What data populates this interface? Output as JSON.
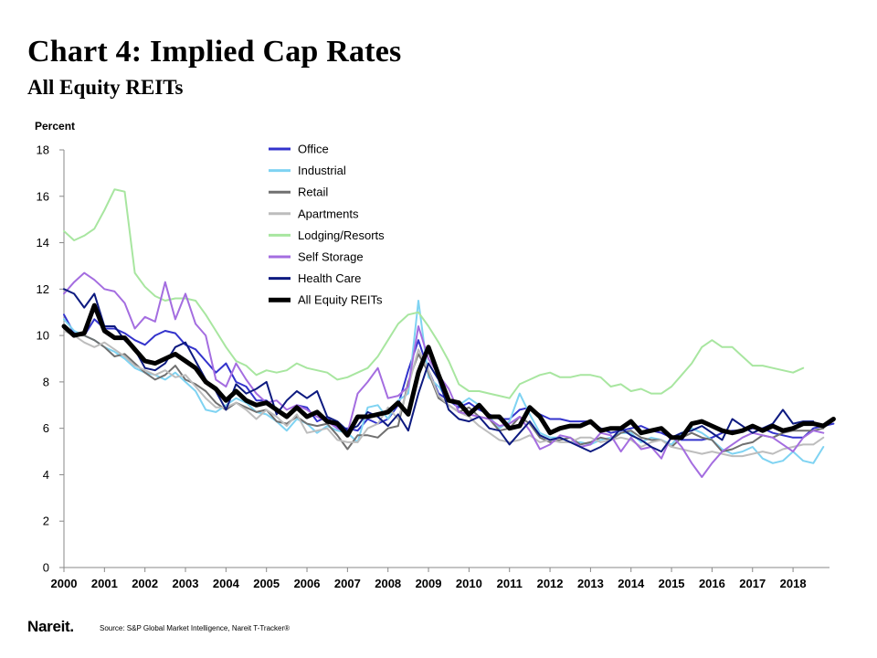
{
  "header": {
    "title": "Chart 4: Implied Cap Rates",
    "subtitle": "All Equity REITs"
  },
  "footer": {
    "logo_text": "Nareit.",
    "source": "Source: S&P Global Market Intelligence, Nareit T-Tracker®"
  },
  "chart_data": {
    "type": "line",
    "title": "Chart 4: Implied Cap Rates",
    "subtitle": "All Equity REITs",
    "ylabel": "Percent",
    "xlabel": "",
    "ylim": [
      0,
      18
    ],
    "yticks": [
      0,
      2,
      4,
      6,
      8,
      10,
      12,
      14,
      16,
      18
    ],
    "xlim": [
      2000,
      2018.9
    ],
    "xticks": [
      2000,
      2001,
      2002,
      2003,
      2004,
      2005,
      2006,
      2007,
      2008,
      2009,
      2010,
      2011,
      2012,
      2013,
      2014,
      2015,
      2016,
      2017,
      2018
    ],
    "x_start": 2000,
    "x_step": 0.25,
    "grid": false,
    "legend_position": "top-center",
    "series": [
      {
        "name": "Office",
        "color": "#3333cc",
        "width": 2,
        "values": [
          10.9,
          10.1,
          10.0,
          10.7,
          10.3,
          10.3,
          10.1,
          9.8,
          9.6,
          10.0,
          10.2,
          10.1,
          9.6,
          9.4,
          8.9,
          8.4,
          8.8,
          8.0,
          7.8,
          7.2,
          7.2,
          6.8,
          6.5,
          7.0,
          6.9,
          6.3,
          6.5,
          6.0,
          6.0,
          5.9,
          6.4,
          6.2,
          6.4,
          7.0,
          8.5,
          9.8,
          8.5,
          7.5,
          7.2,
          6.9,
          7.1,
          6.8,
          6.6,
          6.4,
          6.4,
          6.8,
          6.9,
          6.6,
          6.4,
          6.4,
          6.3,
          6.3,
          6.3,
          6.0,
          5.8,
          5.9,
          6.0,
          6.1,
          5.9,
          5.8,
          5.6,
          5.5,
          5.5,
          5.5,
          5.6,
          5.8,
          5.9,
          5.9,
          6.0,
          6.0,
          5.8,
          5.7,
          5.6,
          5.6,
          6.0,
          6.1,
          6.2
        ]
      },
      {
        "name": "Industrial",
        "color": "#7fd3f2",
        "width": 2,
        "values": [
          10.7,
          10.2,
          10.0,
          9.8,
          9.5,
          9.3,
          9.0,
          8.6,
          8.4,
          8.3,
          8.1,
          8.4,
          8.0,
          7.6,
          6.8,
          6.7,
          7.0,
          7.3,
          7.1,
          6.7,
          6.6,
          6.3,
          5.9,
          6.4,
          6.2,
          5.8,
          6.1,
          5.9,
          5.8,
          5.4,
          6.9,
          7.0,
          6.4,
          7.2,
          7.5,
          11.5,
          8.2,
          7.8,
          7.2,
          7.0,
          7.3,
          7.0,
          6.5,
          6.0,
          6.3,
          7.5,
          6.6,
          5.8,
          5.6,
          5.6,
          5.4,
          5.4,
          5.3,
          5.5,
          5.6,
          5.8,
          5.8,
          5.4,
          5.6,
          5.5,
          5.3,
          5.8,
          6.0,
          5.8,
          5.5,
          5.1,
          4.9,
          5.0,
          5.2,
          4.7,
          4.5,
          4.6,
          5.0,
          4.6,
          4.5,
          5.2
        ]
      },
      {
        "name": "Retail",
        "color": "#707070",
        "width": 2,
        "values": [
          10.3,
          10.0,
          10.0,
          9.8,
          9.5,
          9.1,
          9.2,
          8.8,
          8.4,
          8.1,
          8.3,
          8.7,
          8.1,
          7.9,
          7.6,
          7.1,
          6.8,
          7.1,
          6.9,
          6.7,
          6.8,
          6.3,
          6.2,
          6.5,
          6.2,
          6.1,
          6.2,
          5.7,
          5.1,
          5.7,
          5.7,
          5.6,
          6.0,
          6.1,
          8.0,
          9.2,
          8.4,
          7.3,
          7.0,
          6.7,
          6.9,
          6.5,
          6.4,
          5.9,
          6.0,
          6.5,
          6.2,
          5.6,
          5.4,
          5.5,
          5.6,
          5.3,
          5.4,
          5.6,
          5.5,
          5.8,
          5.9,
          5.6,
          5.5,
          5.5,
          5.2,
          5.6,
          5.8,
          5.6,
          5.5,
          5.0,
          5.1,
          5.3,
          5.4,
          5.7,
          5.6,
          5.8,
          5.9,
          5.9,
          5.9,
          6.0
        ]
      },
      {
        "name": "Apartments",
        "color": "#bdbdbd",
        "width": 2,
        "values": [
          10.2,
          10.0,
          9.7,
          9.5,
          9.7,
          9.4,
          9.1,
          8.7,
          8.5,
          8.3,
          8.5,
          8.2,
          8.3,
          7.8,
          7.3,
          6.9,
          6.9,
          7.1,
          6.8,
          6.4,
          6.8,
          6.5,
          6.1,
          6.6,
          5.8,
          5.9,
          6.0,
          5.5,
          5.4,
          5.4,
          6.0,
          6.2,
          6.9,
          6.4,
          7.8,
          9.4,
          8.5,
          7.4,
          7.0,
          6.7,
          6.5,
          6.1,
          5.8,
          5.5,
          5.4,
          5.5,
          5.7,
          5.4,
          5.5,
          5.4,
          5.4,
          5.6,
          5.6,
          5.4,
          5.5,
          5.6,
          5.5,
          5.2,
          5.4,
          5.5,
          5.2,
          5.1,
          5.0,
          4.9,
          5.0,
          4.9,
          4.8,
          4.8,
          4.9,
          5.0,
          4.9,
          5.1,
          5.2,
          5.3,
          5.3,
          5.6
        ]
      },
      {
        "name": "Lodging/Resorts",
        "color": "#a8e6a0",
        "width": 2,
        "values": [
          14.5,
          14.1,
          14.3,
          14.6,
          15.4,
          16.3,
          16.2,
          12.7,
          12.1,
          11.7,
          11.5,
          11.6,
          11.6,
          11.5,
          10.9,
          10.2,
          9.5,
          8.9,
          8.7,
          8.3,
          8.5,
          8.4,
          8.5,
          8.8,
          8.6,
          8.5,
          8.4,
          8.1,
          8.2,
          8.4,
          8.6,
          9.1,
          9.8,
          10.5,
          10.9,
          11.0,
          10.4,
          9.7,
          8.9,
          7.9,
          7.6,
          7.6,
          7.5,
          7.4,
          7.3,
          7.9,
          8.1,
          8.3,
          8.4,
          8.2,
          8.2,
          8.3,
          8.3,
          8.2,
          7.8,
          7.9,
          7.6,
          7.7,
          7.5,
          7.5,
          7.8,
          8.3,
          8.8,
          9.5,
          9.8,
          9.5,
          9.5,
          9.1,
          8.7,
          8.7,
          8.6,
          8.5,
          8.4,
          8.6
        ]
      },
      {
        "name": "Self Storage",
        "color": "#a46de0",
        "width": 2,
        "values": [
          11.8,
          12.3,
          12.7,
          12.4,
          12.0,
          11.9,
          11.4,
          10.3,
          10.8,
          10.6,
          12.3,
          10.7,
          11.8,
          10.5,
          10.0,
          8.1,
          7.8,
          8.8,
          8.1,
          7.5,
          7.1,
          7.2,
          6.8,
          7.0,
          6.8,
          6.5,
          6.3,
          6.0,
          5.8,
          7.5,
          8.0,
          8.6,
          7.3,
          7.4,
          7.8,
          10.4,
          9.0,
          8.3,
          7.7,
          6.7,
          6.6,
          6.5,
          6.4,
          6.1,
          6.2,
          6.5,
          5.9,
          5.1,
          5.3,
          5.7,
          5.6,
          5.2,
          5.3,
          5.8,
          5.7,
          5.0,
          5.6,
          5.1,
          5.2,
          4.7,
          5.7,
          5.2,
          4.5,
          3.9,
          4.5,
          5.0,
          5.3,
          5.6,
          5.8,
          5.7,
          5.6,
          5.3,
          5.0,
          5.6,
          5.9,
          5.8
        ]
      },
      {
        "name": "Health Care",
        "color": "#0d1a80",
        "width": 2,
        "values": [
          12.0,
          11.8,
          11.2,
          11.8,
          10.4,
          10.4,
          9.8,
          9.4,
          8.6,
          8.5,
          8.8,
          9.5,
          9.7,
          8.9,
          8.1,
          7.6,
          6.8,
          7.9,
          7.5,
          7.7,
          8.0,
          6.6,
          7.2,
          7.6,
          7.3,
          7.6,
          6.5,
          6.3,
          5.9,
          6.1,
          6.7,
          6.5,
          6.1,
          6.6,
          5.9,
          7.5,
          8.8,
          8.1,
          6.8,
          6.4,
          6.3,
          6.5,
          6.0,
          5.9,
          5.3,
          5.8,
          6.3,
          5.7,
          5.5,
          5.6,
          5.4,
          5.2,
          5.0,
          5.2,
          5.5,
          6.0,
          5.7,
          5.5,
          5.2,
          5.0,
          5.6,
          5.8,
          5.9,
          6.1,
          5.8,
          5.5,
          6.4,
          6.1,
          5.8,
          6.0,
          6.2,
          6.8,
          6.2,
          6.3,
          6.3
        ]
      },
      {
        "name": "All Equity REITs",
        "color": "#000000",
        "width": 5,
        "values": [
          10.4,
          10.0,
          10.1,
          11.3,
          10.2,
          9.9,
          9.9,
          9.4,
          8.9,
          8.8,
          9.0,
          9.2,
          8.9,
          8.6,
          8.0,
          7.7,
          7.2,
          7.6,
          7.2,
          7.0,
          7.1,
          6.8,
          6.5,
          6.9,
          6.5,
          6.7,
          6.3,
          6.2,
          5.7,
          6.5,
          6.5,
          6.6,
          6.7,
          7.1,
          6.6,
          8.4,
          9.5,
          8.3,
          7.2,
          7.1,
          6.6,
          7.0,
          6.5,
          6.5,
          6.0,
          6.1,
          6.9,
          6.5,
          5.8,
          6.0,
          6.1,
          6.1,
          6.3,
          5.9,
          6.0,
          6.0,
          6.3,
          5.8,
          5.9,
          6.0,
          5.6,
          5.6,
          6.2,
          6.3,
          6.1,
          5.9,
          5.8,
          5.9,
          6.1,
          5.9,
          6.1,
          5.9,
          6.0,
          6.2,
          6.2,
          6.1,
          6.4
        ]
      }
    ]
  }
}
